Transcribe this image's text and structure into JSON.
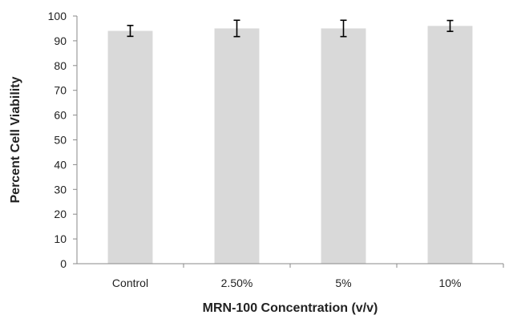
{
  "chart_data": {
    "type": "bar",
    "categories": [
      "Control",
      "2.50%",
      "5%",
      "10%"
    ],
    "values": [
      94,
      95,
      95,
      96
    ],
    "errors": [
      2.2,
      3.3,
      3.3,
      2.2
    ],
    "title": "",
    "xlabel": "MRN-100 Concentration (v/v)",
    "ylabel": "Percent Cell Viability",
    "ylim": [
      0,
      100
    ],
    "yticks": [
      0,
      10,
      20,
      30,
      40,
      50,
      60,
      70,
      80,
      90,
      100
    ],
    "bar_color": "#d9d9d9",
    "grid": false,
    "legend": "none"
  }
}
